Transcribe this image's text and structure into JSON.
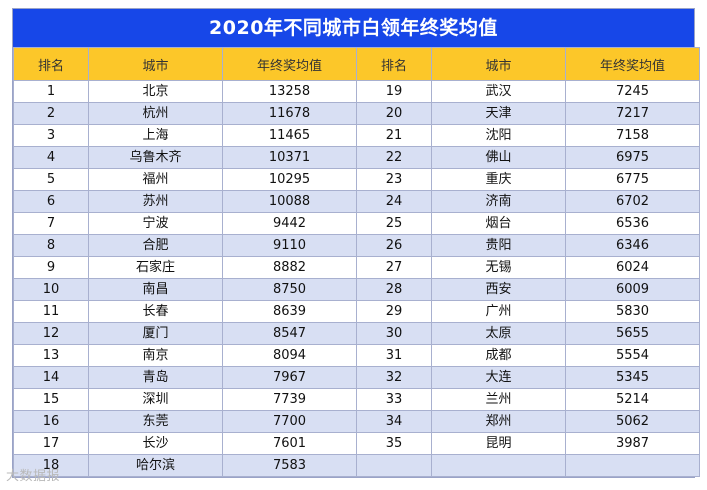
{
  "title": "2020年不同城市白领年终奖均值",
  "headers": [
    "排名",
    "城市",
    "年终奖均值",
    "排名",
    "城市",
    "年终奖均值"
  ],
  "rows": [
    {
      "left": {
        "rank": "1",
        "city": "北京",
        "value": "13258"
      },
      "right": {
        "rank": "19",
        "city": "武汉",
        "value": "7245"
      }
    },
    {
      "left": {
        "rank": "2",
        "city": "杭州",
        "value": "11678"
      },
      "right": {
        "rank": "20",
        "city": "天津",
        "value": "7217"
      }
    },
    {
      "left": {
        "rank": "3",
        "city": "上海",
        "value": "11465"
      },
      "right": {
        "rank": "21",
        "city": "沈阳",
        "value": "7158"
      }
    },
    {
      "left": {
        "rank": "4",
        "city": "乌鲁木齐",
        "value": "10371"
      },
      "right": {
        "rank": "22",
        "city": "佛山",
        "value": "6975"
      }
    },
    {
      "left": {
        "rank": "5",
        "city": "福州",
        "value": "10295"
      },
      "right": {
        "rank": "23",
        "city": "重庆",
        "value": "6775"
      }
    },
    {
      "left": {
        "rank": "6",
        "city": "苏州",
        "value": "10088"
      },
      "right": {
        "rank": "24",
        "city": "济南",
        "value": "6702"
      }
    },
    {
      "left": {
        "rank": "7",
        "city": "宁波",
        "value": "9442"
      },
      "right": {
        "rank": "25",
        "city": "烟台",
        "value": "6536"
      }
    },
    {
      "left": {
        "rank": "8",
        "city": "合肥",
        "value": "9110"
      },
      "right": {
        "rank": "26",
        "city": "贵阳",
        "value": "6346"
      }
    },
    {
      "left": {
        "rank": "9",
        "city": "石家庄",
        "value": "8882"
      },
      "right": {
        "rank": "27",
        "city": "无锡",
        "value": "6024"
      }
    },
    {
      "left": {
        "rank": "10",
        "city": "南昌",
        "value": "8750"
      },
      "right": {
        "rank": "28",
        "city": "西安",
        "value": "6009"
      }
    },
    {
      "left": {
        "rank": "11",
        "city": "长春",
        "value": "8639"
      },
      "right": {
        "rank": "29",
        "city": "广州",
        "value": "5830"
      }
    },
    {
      "left": {
        "rank": "12",
        "city": "厦门",
        "value": "8547"
      },
      "right": {
        "rank": "30",
        "city": "太原",
        "value": "5655"
      }
    },
    {
      "left": {
        "rank": "13",
        "city": "南京",
        "value": "8094"
      },
      "right": {
        "rank": "31",
        "city": "成都",
        "value": "5554"
      }
    },
    {
      "left": {
        "rank": "14",
        "city": "青岛",
        "value": "7967"
      },
      "right": {
        "rank": "32",
        "city": "大连",
        "value": "5345"
      }
    },
    {
      "left": {
        "rank": "15",
        "city": "深圳",
        "value": "7739"
      },
      "right": {
        "rank": "33",
        "city": "兰州",
        "value": "5214"
      }
    },
    {
      "left": {
        "rank": "16",
        "city": "东莞",
        "value": "7700"
      },
      "right": {
        "rank": "34",
        "city": "郑州",
        "value": "5062"
      }
    },
    {
      "left": {
        "rank": "17",
        "city": "长沙",
        "value": "7601"
      },
      "right": {
        "rank": "35",
        "city": "昆明",
        "value": "3987"
      }
    },
    {
      "left": {
        "rank": "18",
        "city": "哈尔滨",
        "value": "7583"
      },
      "right": {
        "rank": "",
        "city": "",
        "value": ""
      }
    }
  ],
  "watermark": "大数据报"
}
